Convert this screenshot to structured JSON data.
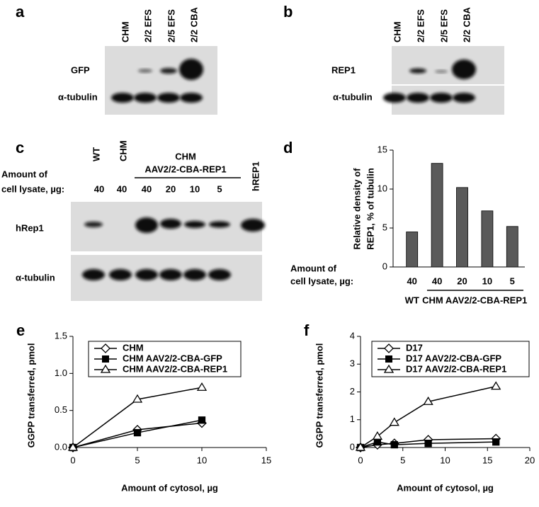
{
  "panels": {
    "a": {
      "label": "a",
      "lanes": [
        "CHM",
        "2/2 EFS",
        "2/5 EFS",
        "2/2 CBA"
      ],
      "rows": [
        "GFP",
        "α-tubulin"
      ]
    },
    "b": {
      "label": "b",
      "lanes": [
        "CHM",
        "2/2 EFS",
        "2/5 EFS",
        "2/2 CBA"
      ],
      "rows": [
        "REP1",
        "α-tubulin"
      ]
    },
    "c": {
      "label": "c",
      "lanes": [
        "WT",
        "CHM"
      ],
      "group_label": [
        "CHM",
        "AAV2/2-CBA-REP1"
      ],
      "last_lane": "hREP1",
      "amount_label": [
        "Amount of",
        "cell lysate, µg:"
      ],
      "amounts": [
        40,
        40,
        40,
        20,
        10,
        5
      ],
      "rows": [
        "hRep1",
        "α-tubulin"
      ]
    }
  },
  "chart_data": [
    {
      "type": "bar",
      "label": "d",
      "y_label": [
        "Relative density of",
        "REP1, % of tubulin"
      ],
      "x_label": [
        "Amount of",
        "cell lysate, µg:"
      ],
      "categories": [
        "40",
        "40",
        "20",
        "10",
        "5"
      ],
      "values": [
        4.5,
        13.3,
        10.2,
        7.2,
        5.2
      ],
      "color": "#5a5a5a",
      "ylim": [
        0,
        15
      ],
      "yticks": [
        0,
        5,
        10,
        15
      ],
      "groups": [
        "WT",
        "CHM AAV2/2-CBA-REP1"
      ]
    },
    {
      "type": "line",
      "label": "e",
      "x_label": "Amount of cytosol, µg",
      "y_label": "GGPP transferred, pmol",
      "xlim": [
        0,
        15
      ],
      "xticks": [
        0,
        5,
        10,
        15
      ],
      "ylim": [
        0,
        1.5
      ],
      "yticks": [
        {
          "value": 0,
          "label": "0.0"
        },
        {
          "value": 0.5,
          "label": "0.5"
        },
        {
          "value": 1,
          "label": "1.0"
        },
        {
          "value": 1.5,
          "label": "1.5"
        }
      ],
      "x": [
        0,
        5,
        10
      ],
      "series": [
        {
          "name": "CHM",
          "color": "#000000",
          "marker": "diamond",
          "values": [
            0,
            0.24,
            0.33
          ]
        },
        {
          "name": "CHM AAV2/2-CBA-GFP",
          "color": "#000000",
          "marker": "square",
          "values": [
            0,
            0.2,
            0.37
          ]
        },
        {
          "name": "CHM AAV2/2-CBA-REP1",
          "color": "#000000",
          "marker": "triangle",
          "values": [
            0,
            0.65,
            0.81
          ]
        }
      ]
    },
    {
      "type": "line",
      "label": "f",
      "x_label": "Amount of cytosol, µg",
      "y_label": "GGPP transferred, pmol",
      "xlim": [
        0,
        20
      ],
      "xticks": [
        0,
        5,
        10,
        15,
        20
      ],
      "ylim": [
        0,
        4
      ],
      "yticks": [
        0,
        1,
        2,
        3,
        4
      ],
      "x": [
        0,
        2,
        4,
        8,
        16
      ],
      "series": [
        {
          "name": "D17",
          "color": "#000000",
          "marker": "diamond",
          "values": [
            0,
            0.1,
            0.15,
            0.28,
            0.32
          ]
        },
        {
          "name": "D17 AAV2/2-CBA-GFP",
          "color": "#000000",
          "marker": "square",
          "values": [
            0,
            0.2,
            0.1,
            0.15,
            0.2
          ]
        },
        {
          "name": "D17 AAV2/2-CBA-REP1",
          "color": "#000000",
          "marker": "triangle",
          "values": [
            0,
            0.4,
            0.9,
            1.65,
            2.2
          ]
        }
      ]
    }
  ]
}
